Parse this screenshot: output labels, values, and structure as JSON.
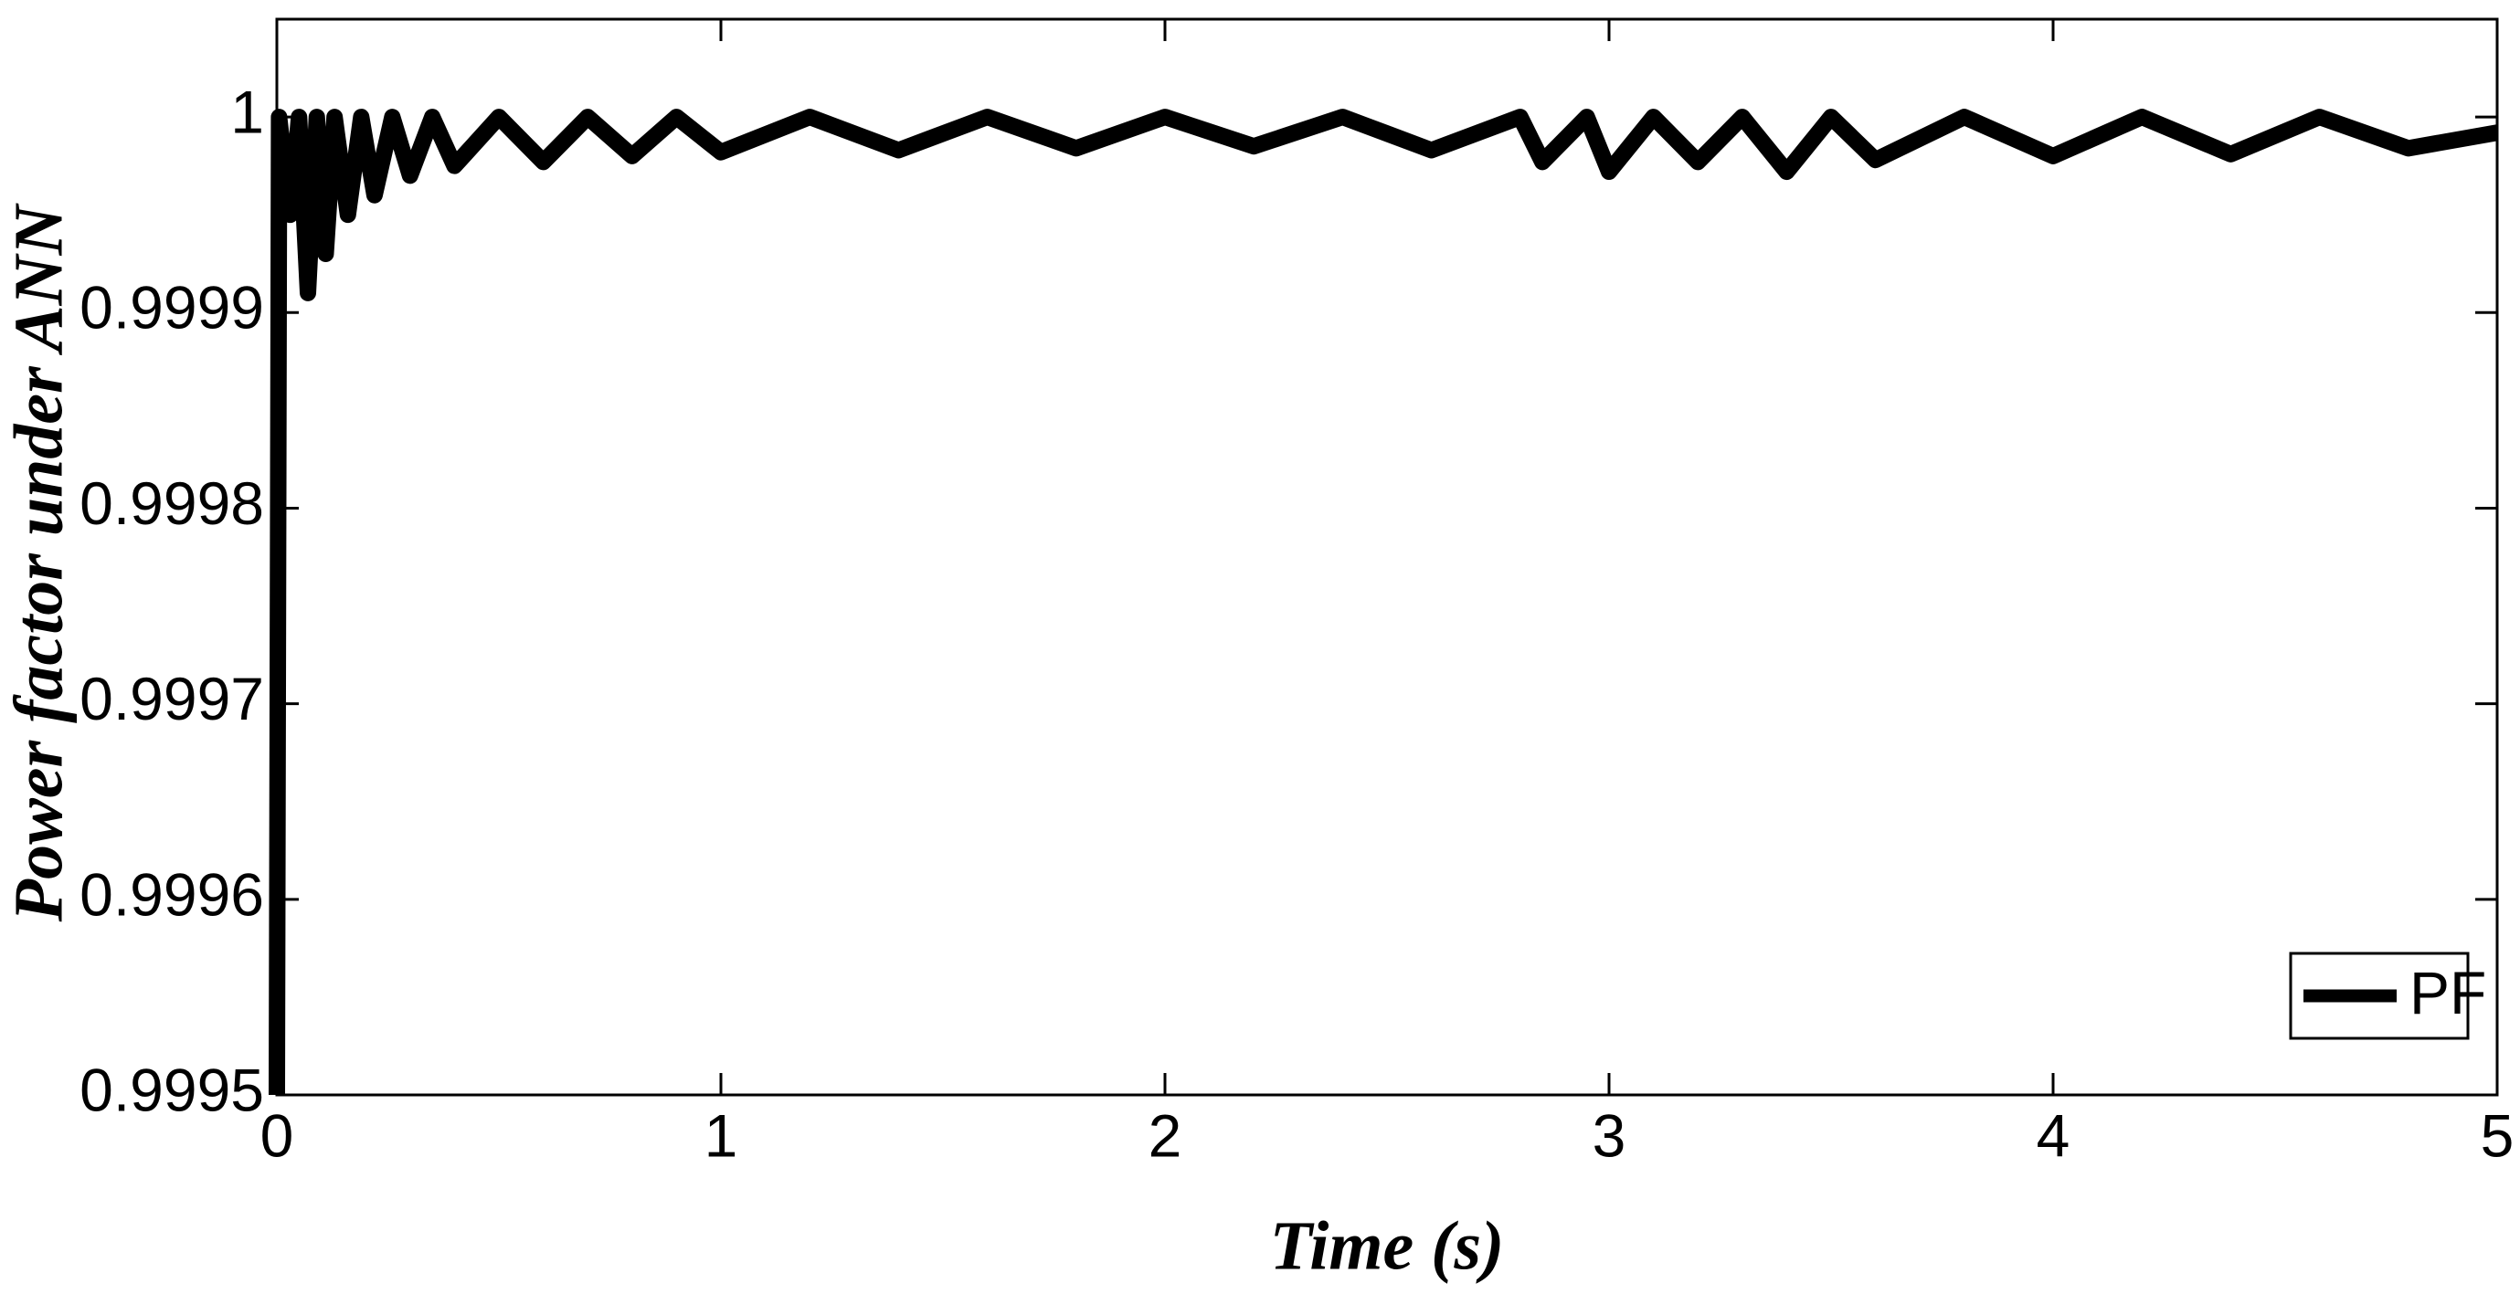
{
  "chart_data": {
    "type": "line",
    "xlabel": "Time (s)",
    "ylabel": "Power factor under ANN",
    "x": [
      0,
      0.005,
      0.03,
      0.05,
      0.07,
      0.09,
      0.11,
      0.13,
      0.16,
      0.19,
      0.22,
      0.26,
      0.3,
      0.35,
      0.4,
      0.5,
      0.6,
      0.7,
      0.8,
      0.9,
      1.0,
      1.2,
      1.4,
      1.6,
      1.8,
      2.0,
      2.2,
      2.4,
      2.6,
      2.8,
      2.85,
      2.95,
      3.0,
      3.1,
      3.2,
      3.3,
      3.4,
      3.5,
      3.6,
      3.8,
      4.0,
      4.2,
      4.4,
      4.6,
      4.8,
      5.0
    ],
    "series": [
      {
        "name": "PF",
        "color": "#000000",
        "values": [
          0.9995,
          1,
          0.99995,
          1,
          0.99991,
          1,
          0.99993,
          1,
          0.99995,
          1,
          0.99996,
          1,
          0.99997,
          1,
          0.999975,
          1,
          0.999977,
          1,
          0.99998,
          1,
          0.999982,
          1,
          0.999983,
          1,
          0.999984,
          1,
          0.999985,
          1,
          0.999983,
          1,
          0.999977,
          1,
          0.999972,
          1,
          0.999977,
          1,
          0.999972,
          1,
          0.999978,
          1,
          0.99998,
          1,
          0.999981,
          1,
          0.999984,
          0.999992
        ]
      }
    ],
    "xlim": [
      0,
      5
    ],
    "xticks": [
      0,
      1,
      2,
      3,
      4,
      5
    ],
    "ylim": [
      0.9995,
      1.00005
    ],
    "yticks": [
      0.9995,
      0.9996,
      0.9997,
      0.9998,
      0.9999,
      1
    ],
    "legend": "lower right",
    "grid": false
  }
}
